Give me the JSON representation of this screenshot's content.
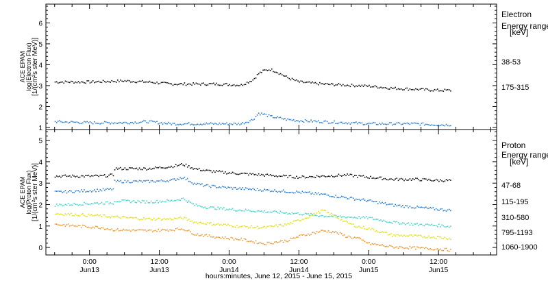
{
  "chart_data": [
    {
      "type": "scatter",
      "title": "",
      "ylabel": [
        "ACE EPAM",
        "log(Electron Flux)",
        "[1/(cm²s ster MeV)]"
      ],
      "ylim": [
        0.9,
        6.9
      ],
      "yticks": [
        1,
        2,
        3,
        4,
        5,
        6
      ],
      "legend_title": [
        "Electron",
        "Energy range",
        "[keV]"
      ],
      "series": [
        {
          "name": "38-53",
          "color": "#000000",
          "x": [
            -6,
            0,
            6,
            10,
            14,
            18,
            22,
            26,
            28,
            29,
            30,
            31,
            32,
            34,
            36,
            40,
            44,
            48,
            52,
            56,
            60,
            62
          ],
          "y": [
            3.2,
            3.2,
            3.25,
            3.2,
            3.1,
            3.1,
            3.1,
            3.05,
            3.3,
            3.6,
            3.75,
            3.8,
            3.7,
            3.4,
            3.2,
            3.1,
            3.05,
            3.0,
            2.9,
            2.85,
            2.8,
            2.8
          ]
        },
        {
          "name": "175-315",
          "color": "#1f77d4",
          "x": [
            -6,
            0,
            6,
            10,
            14,
            18,
            22,
            26,
            28,
            29,
            30,
            31,
            32,
            34,
            36,
            40,
            44,
            48,
            52,
            56,
            60,
            62
          ],
          "y": [
            1.3,
            1.25,
            1.25,
            1.3,
            1.2,
            1.2,
            1.2,
            1.2,
            1.4,
            1.7,
            1.65,
            1.55,
            1.5,
            1.4,
            1.35,
            1.3,
            1.25,
            1.2,
            1.2,
            1.2,
            1.15,
            1.15
          ]
        }
      ]
    },
    {
      "type": "scatter",
      "title": "",
      "ylabel": [
        "ACE EPAM",
        "log(Proton Flux)",
        "[1/(cm²s ster MeV)]"
      ],
      "ylim": [
        -0.35,
        5.5
      ],
      "yticks": [
        0,
        1,
        2,
        3,
        4,
        5
      ],
      "legend_title": [
        "Proton",
        "Energy range",
        "[keV]"
      ],
      "series": [
        {
          "name": "47-68",
          "color": "#000000",
          "x": [
            -6,
            2,
            4,
            4.1,
            10,
            14,
            16,
            18,
            20,
            24,
            30,
            36,
            40,
            44,
            48,
            52,
            56,
            60,
            62
          ],
          "y": [
            3.35,
            3.35,
            3.4,
            3.7,
            3.7,
            3.8,
            3.9,
            3.7,
            3.6,
            3.5,
            3.4,
            3.3,
            3.35,
            3.4,
            3.3,
            3.2,
            3.2,
            3.15,
            3.15
          ]
        },
        {
          "name": "115-195",
          "color": "#1f77d4",
          "x": [
            -6,
            2,
            4,
            4.1,
            10,
            14,
            16,
            18,
            20,
            24,
            30,
            36,
            40,
            44,
            48,
            52,
            56,
            60,
            62
          ],
          "y": [
            2.6,
            2.7,
            2.75,
            3.1,
            3.1,
            3.15,
            3.3,
            3.0,
            2.9,
            2.8,
            2.7,
            2.6,
            2.5,
            2.35,
            2.2,
            2.0,
            1.9,
            1.8,
            1.75
          ]
        },
        {
          "name": "310-580",
          "color": "#33d6c6",
          "x": [
            -6,
            2,
            4,
            4.1,
            10,
            14,
            16,
            18,
            20,
            24,
            30,
            36,
            40,
            44,
            48,
            52,
            56,
            60,
            62
          ],
          "y": [
            2.0,
            2.1,
            2.1,
            2.2,
            2.15,
            2.2,
            2.3,
            2.0,
            1.9,
            1.8,
            1.7,
            1.6,
            1.5,
            1.45,
            1.4,
            1.2,
            1.1,
            1.05,
            1.0
          ]
        },
        {
          "name": "795-1193",
          "color": "#e0e000",
          "x": [
            -6,
            2,
            4,
            10,
            14,
            16,
            18,
            22,
            26,
            30,
            34,
            38,
            40,
            42,
            44,
            46,
            48,
            52,
            56,
            60,
            62
          ],
          "y": [
            1.6,
            1.5,
            1.45,
            1.35,
            1.35,
            1.4,
            1.2,
            1.1,
            1.0,
            0.95,
            1.1,
            1.5,
            1.75,
            1.5,
            1.2,
            1.0,
            0.9,
            0.6,
            0.55,
            0.5,
            0.45
          ]
        },
        {
          "name": "1060-1900",
          "color": "#f0901e",
          "x": [
            -6,
            2,
            4,
            10,
            14,
            16,
            18,
            22,
            26,
            30,
            34,
            36,
            40,
            42,
            44,
            46,
            48,
            52,
            56,
            60,
            62
          ],
          "y": [
            1.1,
            0.95,
            0.85,
            0.8,
            0.85,
            0.9,
            0.65,
            0.5,
            0.4,
            0.2,
            0.35,
            0.55,
            0.8,
            0.75,
            0.55,
            0.45,
            0.2,
            0.05,
            0.0,
            -0.05,
            -0.1
          ]
        }
      ]
    }
  ],
  "x_axis": {
    "ticks": [
      {
        "hours": 0,
        "label": "0:00",
        "date": "Jun13"
      },
      {
        "hours": 12,
        "label": "12:00",
        "date": "Jun13"
      },
      {
        "hours": 24,
        "label": "0:00",
        "date": "Jun14"
      },
      {
        "hours": 36,
        "label": "12:00",
        "date": "Jun14"
      },
      {
        "hours": 48,
        "label": "0:00",
        "date": "Jun15"
      },
      {
        "hours": 60,
        "label": "12:00",
        "date": "Jun15"
      }
    ],
    "xlim": [
      -7.5,
      70
    ],
    "title": "hours:minutes, June 12, 2015 - June 15, 2015"
  },
  "grid": false
}
